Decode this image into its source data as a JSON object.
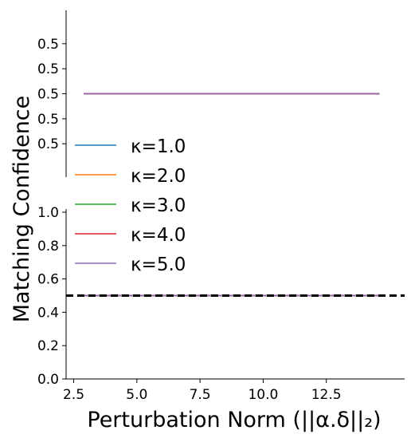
{
  "chart_data": {
    "type": "line",
    "ylabel": "Matching Confidence",
    "xlabel": "Perturbation Norm (||α.δ||₂)",
    "x": [
      2.9,
      14.6
    ],
    "xlim": [
      2.2,
      15.6
    ],
    "x_ticks": [
      {
        "value": 2.5,
        "label": "2.5"
      },
      {
        "value": 5.0,
        "label": "5.0"
      },
      {
        "value": 7.5,
        "label": "7.5"
      },
      {
        "value": 10.0,
        "label": "10.0"
      },
      {
        "value": 12.5,
        "label": "12.5"
      }
    ],
    "legend": {
      "placement": "center-left"
    },
    "series": [
      {
        "name": "κ=1.0",
        "color": "#1f77b4",
        "values": [
          0.5,
          0.5
        ]
      },
      {
        "name": "κ=2.0",
        "color": "#ff7f0e",
        "values": [
          0.5,
          0.5
        ]
      },
      {
        "name": "κ=3.0",
        "color": "#2ca02c",
        "values": [
          0.5,
          0.5
        ]
      },
      {
        "name": "κ=4.0",
        "color": "#d62728",
        "values": [
          0.5,
          0.5
        ]
      },
      {
        "name": "κ=5.0",
        "color": "#9467bd",
        "values": [
          0.5,
          0.5
        ]
      }
    ],
    "panels": [
      {
        "id": "top",
        "ylim": [
          0.49999,
          0.50001
        ],
        "y_ticks": [
          {
            "value": 0.499994,
            "label": "0.5"
          },
          {
            "value": 0.499997,
            "label": "0.5"
          },
          {
            "value": 0.5,
            "label": "0.5"
          },
          {
            "value": 0.500003,
            "label": "0.5"
          },
          {
            "value": 0.500006,
            "label": "0.5"
          }
        ]
      },
      {
        "id": "bottom",
        "ylim": [
          0.0,
          1.0
        ],
        "y_ticks": [
          {
            "value": 0.0,
            "label": "0.0"
          },
          {
            "value": 0.2,
            "label": "0.2"
          },
          {
            "value": 0.4,
            "label": "0.4"
          },
          {
            "value": 0.6,
            "label": "0.6"
          },
          {
            "value": 0.8,
            "label": "0.8"
          },
          {
            "value": 1.0,
            "label": "1.0"
          }
        ],
        "reference_line": {
          "y": 0.5,
          "style": "dashed",
          "color": "#000000"
        }
      }
    ]
  }
}
